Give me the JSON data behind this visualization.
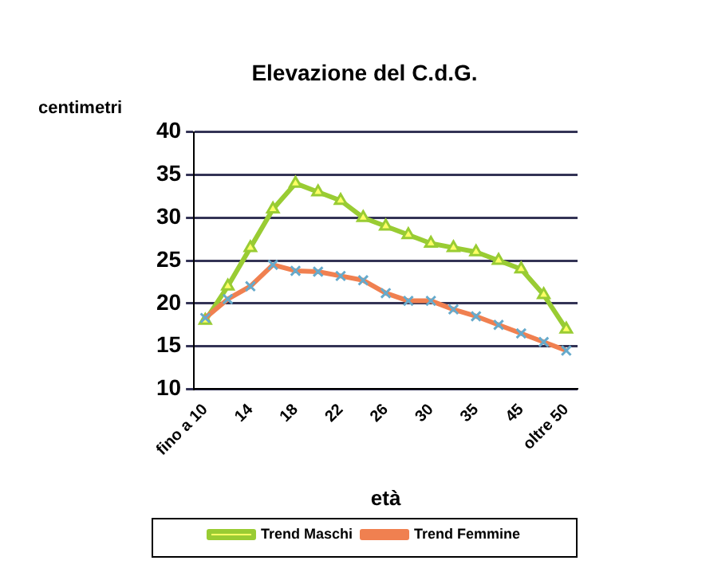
{
  "chart_data": {
    "type": "line",
    "title": "Elevazione del C.d.G.",
    "ylabel": "centimetri",
    "xlabel": "età",
    "categories": [
      "fino a 10",
      null,
      "14",
      null,
      "18",
      null,
      "22",
      null,
      "26",
      null,
      "30",
      null,
      "35",
      null,
      "45",
      null,
      "oltre 50"
    ],
    "series": [
      {
        "name": "Trend Maschi",
        "color": "#99cc33",
        "marker": "triangle",
        "values": [
          18,
          22,
          26.5,
          31,
          34,
          33,
          32,
          30,
          29,
          28,
          27,
          26.5,
          26,
          25,
          24,
          21,
          17
        ]
      },
      {
        "name": "Trend Femmine",
        "color": "#f08050",
        "marker": "cross",
        "values": [
          18.3,
          20.5,
          22,
          24.5,
          23.8,
          23.7,
          23.2,
          22.7,
          21.2,
          20.3,
          20.3,
          19.3,
          18.5,
          17.5,
          16.5,
          15.5,
          14.5
        ]
      }
    ],
    "ylim": [
      10,
      40
    ],
    "yticks": [
      10,
      15,
      20,
      25,
      30,
      35,
      40
    ],
    "grid": "y",
    "legend": "bottom"
  }
}
